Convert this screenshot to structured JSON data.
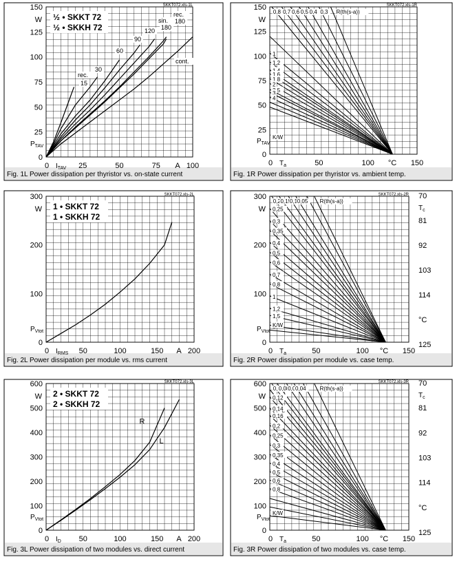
{
  "chart_data": [
    {
      "id": "1L",
      "type": "line",
      "file_label": "SKKT072.xls-1L",
      "caption": "Fig. 1L Power dissipation per thyristor vs. on-state current",
      "legend_lines": [
        "½ • SKKT 72",
        "½ • SKKH 72"
      ],
      "ylabel": "P",
      "ylabel_sub": "TAV",
      "yunit": "W",
      "xlabel": "I",
      "xlabel_sub": "TAV",
      "xunit": "A",
      "xlim": [
        0,
        100
      ],
      "ylim": [
        0,
        150
      ],
      "x_ticks": [
        0,
        25,
        50,
        75,
        100
      ],
      "y_ticks": [
        0,
        25,
        50,
        75,
        100,
        125,
        150
      ],
      "grid": true,
      "series": [
        {
          "label": "rec. 15",
          "x": [
            0,
            5,
            10,
            15,
            19
          ],
          "y": [
            0,
            15,
            34,
            54,
            70
          ]
        },
        {
          "label": "30",
          "x": [
            0,
            5,
            10,
            20,
            30,
            35
          ],
          "y": [
            0,
            13,
            28,
            52,
            70,
            80
          ]
        },
        {
          "label": "60",
          "x": [
            0,
            10,
            20,
            30,
            40,
            50
          ],
          "y": [
            0,
            23,
            41,
            57,
            76,
            97
          ]
        },
        {
          "label": "90",
          "x": [
            0,
            10,
            20,
            30,
            40,
            50,
            60,
            64
          ],
          "y": [
            0,
            20,
            37,
            52,
            69,
            87,
            104,
            112
          ]
        },
        {
          "label": "120",
          "x": [
            0,
            10,
            20,
            30,
            40,
            50,
            60,
            70,
            74
          ],
          "y": [
            0,
            18,
            33,
            47,
            62,
            78,
            94,
            110,
            118
          ]
        },
        {
          "label": "sin. 180",
          "x": [
            0,
            10,
            20,
            30,
            40,
            50,
            60,
            70,
            80,
            82
          ],
          "y": [
            0,
            16,
            29,
            42,
            55,
            69,
            83,
            98,
            113,
            118
          ]
        },
        {
          "label": "rec. 180",
          "x": [
            0,
            10,
            20,
            30,
            40,
            50,
            60,
            70,
            80,
            82
          ],
          "y": [
            0,
            16,
            30,
            43,
            56,
            70,
            85,
            100,
            116,
            120
          ]
        },
        {
          "label": "cont.",
          "x": [
            0,
            10,
            20,
            30,
            40,
            50,
            60,
            70,
            80,
            90,
            100
          ],
          "y": [
            0,
            13,
            24,
            35,
            46,
            57,
            68,
            80,
            93,
            106,
            120
          ]
        }
      ],
      "annotations": [
        "rec.",
        "15",
        "30",
        "60",
        "90",
        "120",
        "sin.",
        "180",
        "rec.",
        "180",
        "cont."
      ]
    },
    {
      "id": "1R",
      "type": "line",
      "file_label": "SKKT072.xls-1R",
      "caption": "Fig. 1R Power dissipation per thyristor vs. ambient temp.",
      "ylabel": "P",
      "ylabel_sub": "TAV",
      "yunit": "W",
      "xlabel": "T",
      "xlabel_sub": "a",
      "xunit": "°C",
      "xlim": [
        0,
        150
      ],
      "ylim": [
        0,
        150
      ],
      "x_ticks": [
        0,
        50,
        100,
        150
      ],
      "y_ticks": [
        0,
        25,
        50,
        75,
        100,
        125,
        150
      ],
      "grid": true,
      "line_top": [
        2,
        12,
        21,
        30,
        39,
        50,
        62
      ],
      "line_top_labels": [
        "0,8",
        "0,7",
        "0,6",
        "0,5",
        "0,4",
        "0,3",
        "R(th(s-a))"
      ],
      "line_left_y": [
        120,
        103,
        94,
        86,
        82,
        77,
        72,
        66,
        63,
        58,
        53,
        48
      ],
      "line_left_labels": [
        "1",
        "1,2",
        "1,4",
        "1,6",
        "1,8",
        "2",
        "2,5",
        "3",
        "4",
        "K/W"
      ],
      "converge_x": 125
    },
    {
      "id": "2L",
      "type": "line",
      "file_label": "SKKT072.xls-2L",
      "caption": "Fig. 2L Power dissipation per module vs. rms current",
      "legend_lines": [
        "1 • SKKT 72",
        "1 • SKKH 72"
      ],
      "ylabel": "P",
      "ylabel_sub": "Vtot",
      "yunit": "W",
      "xlabel": "I",
      "xlabel_sub": "RMS",
      "xunit": "A",
      "xlim": [
        0,
        200
      ],
      "ylim": [
        0,
        300
      ],
      "x_ticks": [
        0,
        50,
        100,
        150,
        200
      ],
      "y_ticks": [
        0,
        100,
        200,
        300
      ],
      "grid": true,
      "series": [
        {
          "label": "",
          "x": [
            0,
            20,
            40,
            60,
            80,
            100,
            120,
            140,
            160,
            170
          ],
          "y": [
            0,
            18,
            36,
            56,
            78,
            103,
            130,
            162,
            200,
            247
          ]
        }
      ]
    },
    {
      "id": "2R",
      "type": "line",
      "file_label": "SKKT072.xls-2R",
      "caption": "Fig. 2R Power dissipation per module vs. case temp.",
      "ylabel": "P",
      "ylabel_sub": "Vtot",
      "yunit": "W",
      "xlabel": "T",
      "xlabel_sub": "a",
      "xunit": "°C",
      "xlim": [
        0,
        150
      ],
      "ylim": [
        0,
        300
      ],
      "x_ticks": [
        0,
        50,
        100,
        150
      ],
      "y_ticks": [
        0,
        100,
        200,
        300
      ],
      "right_axis_label": "T",
      "right_axis_sub": "c",
      "right_ticks": [
        "70",
        "81",
        "92",
        "103",
        "114",
        "°C",
        "125"
      ],
      "grid": true,
      "line_top": [
        2,
        10,
        20,
        28,
        40,
        48
      ],
      "line_top_labels": [
        "0,2",
        "0,15",
        "0,1",
        "0,05",
        "R(th(s-a))"
      ],
      "line_left_y": [
        275,
        250,
        230,
        205,
        185,
        165,
        140,
        120,
        95,
        70,
        55,
        35,
        25
      ],
      "line_left_labels": [
        "0,25",
        "0,3",
        "0,35",
        "0,4",
        "0,5",
        "0,6",
        "0,7",
        "0,8",
        "1",
        "1,2",
        "1,5",
        "2",
        "K/W"
      ],
      "converge_x": 125
    },
    {
      "id": "3L",
      "type": "line",
      "file_label": "SKKT072.xls-3L",
      "caption": "Fig. 3L Power dissipation of two modules vs. direct current",
      "legend_lines": [
        "2 • SKKT 72",
        "2 • SKKH 72"
      ],
      "ylabel": "P",
      "ylabel_sub": "Vtot",
      "yunit": "W",
      "xlabel": "I",
      "xlabel_sub": "D",
      "xunit": "A",
      "xlim": [
        0,
        200
      ],
      "ylim": [
        0,
        600
      ],
      "x_ticks": [
        0,
        50,
        100,
        150,
        200
      ],
      "y_ticks": [
        0,
        100,
        200,
        300,
        400,
        500,
        600
      ],
      "grid": true,
      "series": [
        {
          "label": "R",
          "x": [
            0,
            20,
            40,
            60,
            80,
            100,
            120,
            140,
            160
          ],
          "y": [
            0,
            42,
            85,
            130,
            178,
            228,
            285,
            360,
            500
          ]
        },
        {
          "label": "L",
          "x": [
            0,
            20,
            40,
            60,
            80,
            100,
            120,
            140,
            160,
            180
          ],
          "y": [
            0,
            40,
            82,
            125,
            170,
            217,
            268,
            330,
            420,
            535
          ]
        }
      ]
    },
    {
      "id": "3R",
      "type": "line",
      "file_label": "SKKT072.xls-3R",
      "caption": "Fig. 3R Power dissipation of two modules vs. case temp.",
      "ylabel": "P",
      "ylabel_sub": "Vtot",
      "yunit": "W",
      "xlabel": "T",
      "xlabel_sub": "a",
      "xunit": "°C",
      "xlim": [
        0,
        150
      ],
      "ylim": [
        0,
        600
      ],
      "x_ticks": [
        0,
        50,
        100,
        150
      ],
      "y_ticks": [
        0,
        100,
        200,
        300,
        400,
        500,
        600
      ],
      "right_axis_label": "T",
      "right_axis_sub": "c",
      "right_ticks": [
        "70",
        "81",
        "92",
        "103",
        "114",
        "°C",
        "125"
      ],
      "grid": true,
      "line_top": [
        2,
        8,
        18,
        26,
        36,
        48
      ],
      "line_top_labels": [
        "0,1",
        "0,08",
        "0,06",
        "0,04",
        "R(th(s-a))"
      ],
      "line_left_y": [
        575,
        545,
        500,
        470,
        430,
        390,
        350,
        310,
        275,
        240,
        205,
        170,
        130,
        95,
        60
      ],
      "line_left_labels": [
        "0,12",
        "0,14",
        "0,16",
        "0,2",
        "0,25",
        "0,3",
        "0,35",
        "0,4",
        "0,5",
        "0,6",
        "0,8",
        "K/W"
      ],
      "converge_x": 125
    }
  ]
}
